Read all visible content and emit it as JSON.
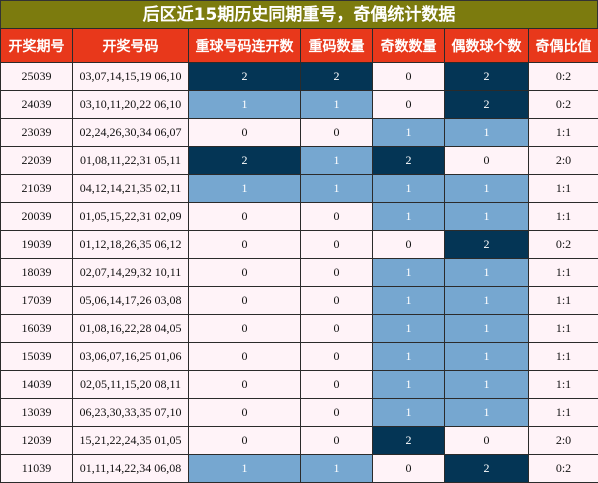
{
  "title": "后区近15期历史同期重号，奇偶统计数据",
  "headers": [
    "开奖期号",
    "开奖号码",
    "重球号码连开数",
    "重码数量",
    "奇数数量",
    "偶数球个数",
    "奇偶比值"
  ],
  "rows": [
    {
      "issue": "25039",
      "numbers": "03,07,14,15,19 06,10",
      "repeat": "2",
      "count": "2",
      "odd": "0",
      "even": "2",
      "ratio": "0:2"
    },
    {
      "issue": "24039",
      "numbers": "03,10,11,20,22 06,10",
      "repeat": "1",
      "count": "1",
      "odd": "0",
      "even": "2",
      "ratio": "0:2"
    },
    {
      "issue": "23039",
      "numbers": "02,24,26,30,34 06,07",
      "repeat": "0",
      "count": "0",
      "odd": "1",
      "even": "1",
      "ratio": "1:1"
    },
    {
      "issue": "22039",
      "numbers": "01,08,11,22,31 05,11",
      "repeat": "2",
      "count": "1",
      "odd": "2",
      "even": "0",
      "ratio": "2:0"
    },
    {
      "issue": "21039",
      "numbers": "04,12,14,21,35 02,11",
      "repeat": "1",
      "count": "1",
      "odd": "1",
      "even": "1",
      "ratio": "1:1"
    },
    {
      "issue": "20039",
      "numbers": "01,05,15,22,31 02,09",
      "repeat": "0",
      "count": "0",
      "odd": "1",
      "even": "1",
      "ratio": "1:1"
    },
    {
      "issue": "19039",
      "numbers": "01,12,18,26,35 06,12",
      "repeat": "0",
      "count": "0",
      "odd": "0",
      "even": "2",
      "ratio": "0:2"
    },
    {
      "issue": "18039",
      "numbers": "02,07,14,29,32 10,11",
      "repeat": "0",
      "count": "0",
      "odd": "1",
      "even": "1",
      "ratio": "1:1"
    },
    {
      "issue": "17039",
      "numbers": "05,06,14,17,26 03,08",
      "repeat": "0",
      "count": "0",
      "odd": "1",
      "even": "1",
      "ratio": "1:1"
    },
    {
      "issue": "16039",
      "numbers": "01,08,16,22,28 04,05",
      "repeat": "0",
      "count": "0",
      "odd": "1",
      "even": "1",
      "ratio": "1:1"
    },
    {
      "issue": "15039",
      "numbers": "03,06,07,16,25 01,06",
      "repeat": "0",
      "count": "0",
      "odd": "1",
      "even": "1",
      "ratio": "1:1"
    },
    {
      "issue": "14039",
      "numbers": "02,05,11,15,20 08,11",
      "repeat": "0",
      "count": "0",
      "odd": "1",
      "even": "1",
      "ratio": "1:1"
    },
    {
      "issue": "13039",
      "numbers": "06,23,30,33,35 07,10",
      "repeat": "0",
      "count": "0",
      "odd": "1",
      "even": "1",
      "ratio": "1:1"
    },
    {
      "issue": "12039",
      "numbers": "15,21,22,24,35 01,05",
      "repeat": "0",
      "count": "0",
      "odd": "2",
      "even": "0",
      "ratio": "2:0"
    },
    {
      "issue": "11039",
      "numbers": "01,11,14,22,34 06,08",
      "repeat": "1",
      "count": "1",
      "odd": "0",
      "even": "2",
      "ratio": "0:2"
    }
  ],
  "colors": {
    "title_bg": "#7c7b0e",
    "header_bg": "#e8381b",
    "light_blue": "#76a7d0",
    "dark_navy": "#043555",
    "pink_bg": "#fff3f8"
  }
}
